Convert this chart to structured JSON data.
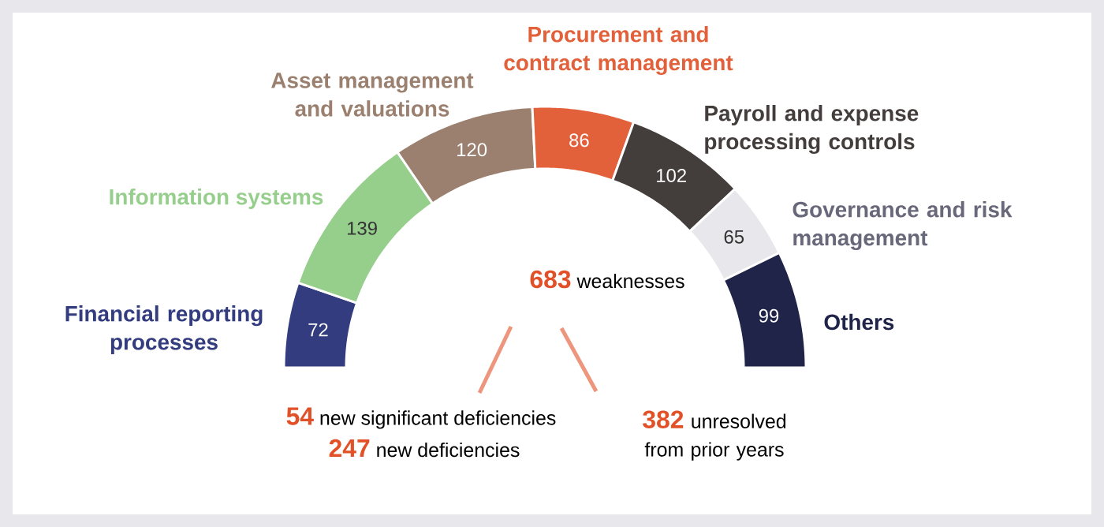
{
  "chart_data": {
    "type": "donut",
    "categories": [
      "Financial reporting processes",
      "Information systems",
      "Asset management and valuations",
      "Procurement and contract management",
      "Payroll and expense processing controls",
      "Governance and risk management",
      "Others"
    ],
    "values": [
      72,
      139,
      120,
      86,
      102,
      65,
      99
    ],
    "colors": [
      "#323c7e",
      "#96cf8c",
      "#9b806f",
      "#e2603a",
      "#433d3b",
      "#e8e8ec",
      "#1f2448"
    ],
    "data_labels": true,
    "annotations": [
      "**683** weaknesses",
      "**54** new significant deficiencies",
      "**247** new deficiencies",
      "**382** unresolved from prior years"
    ]
  }
}
